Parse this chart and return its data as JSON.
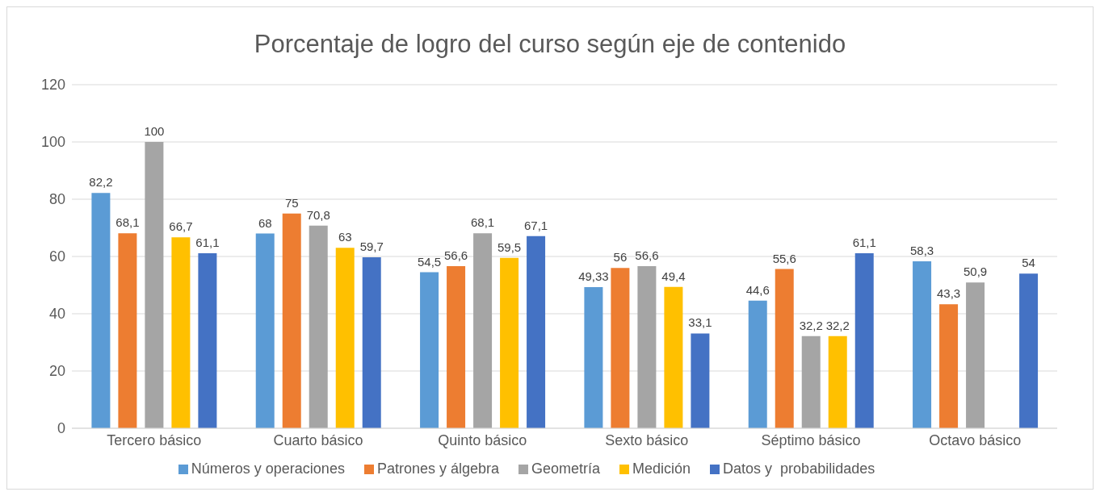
{
  "chart_data": {
    "type": "bar",
    "title": "Porcentaje de logro del curso según eje de contenido",
    "categories": [
      "Tercero básico",
      "Cuarto básico",
      "Quinto básico",
      "Sexto básico",
      "Séptimo básico",
      "Octavo básico"
    ],
    "series": [
      {
        "name": "Números y operaciones",
        "color": "#5b9bd5",
        "values": [
          82.2,
          68,
          54.5,
          49.33,
          44.6,
          58.3
        ],
        "value_labels": [
          "82,2",
          "68",
          "54,5",
          "49,33",
          "44,6",
          "58,3"
        ]
      },
      {
        "name": "Patrones y álgebra",
        "color": "#ed7d31",
        "values": [
          68.1,
          75,
          56.6,
          56,
          55.6,
          43.3
        ],
        "value_labels": [
          "68,1",
          "75",
          "56,6",
          "56",
          "55,6",
          "43,3"
        ]
      },
      {
        "name": "Geometría",
        "color": "#a5a5a5",
        "values": [
          100,
          70.8,
          68.1,
          56.6,
          32.2,
          50.9
        ],
        "value_labels": [
          "100",
          "70,8",
          "68,1",
          "56,6",
          "32,2",
          "50,9"
        ]
      },
      {
        "name": "Medición",
        "color": "#ffc000",
        "values": [
          66.7,
          63,
          59.5,
          49.4,
          32.2,
          null
        ],
        "value_labels": [
          "66,7",
          "63",
          "59,5",
          "49,4",
          "32,2",
          null
        ]
      },
      {
        "name": "Datos y  probabilidades",
        "color": "#4472c4",
        "values": [
          61.1,
          59.7,
          67.1,
          33.1,
          61.1,
          54
        ],
        "value_labels": [
          "61,1",
          "59,7",
          "67,1",
          "33,1",
          "61,1",
          "54"
        ]
      }
    ],
    "ylim": [
      0,
      120
    ],
    "yticks": [
      0,
      20,
      40,
      60,
      80,
      100,
      120
    ],
    "grid": "y",
    "legend": "bottom"
  }
}
